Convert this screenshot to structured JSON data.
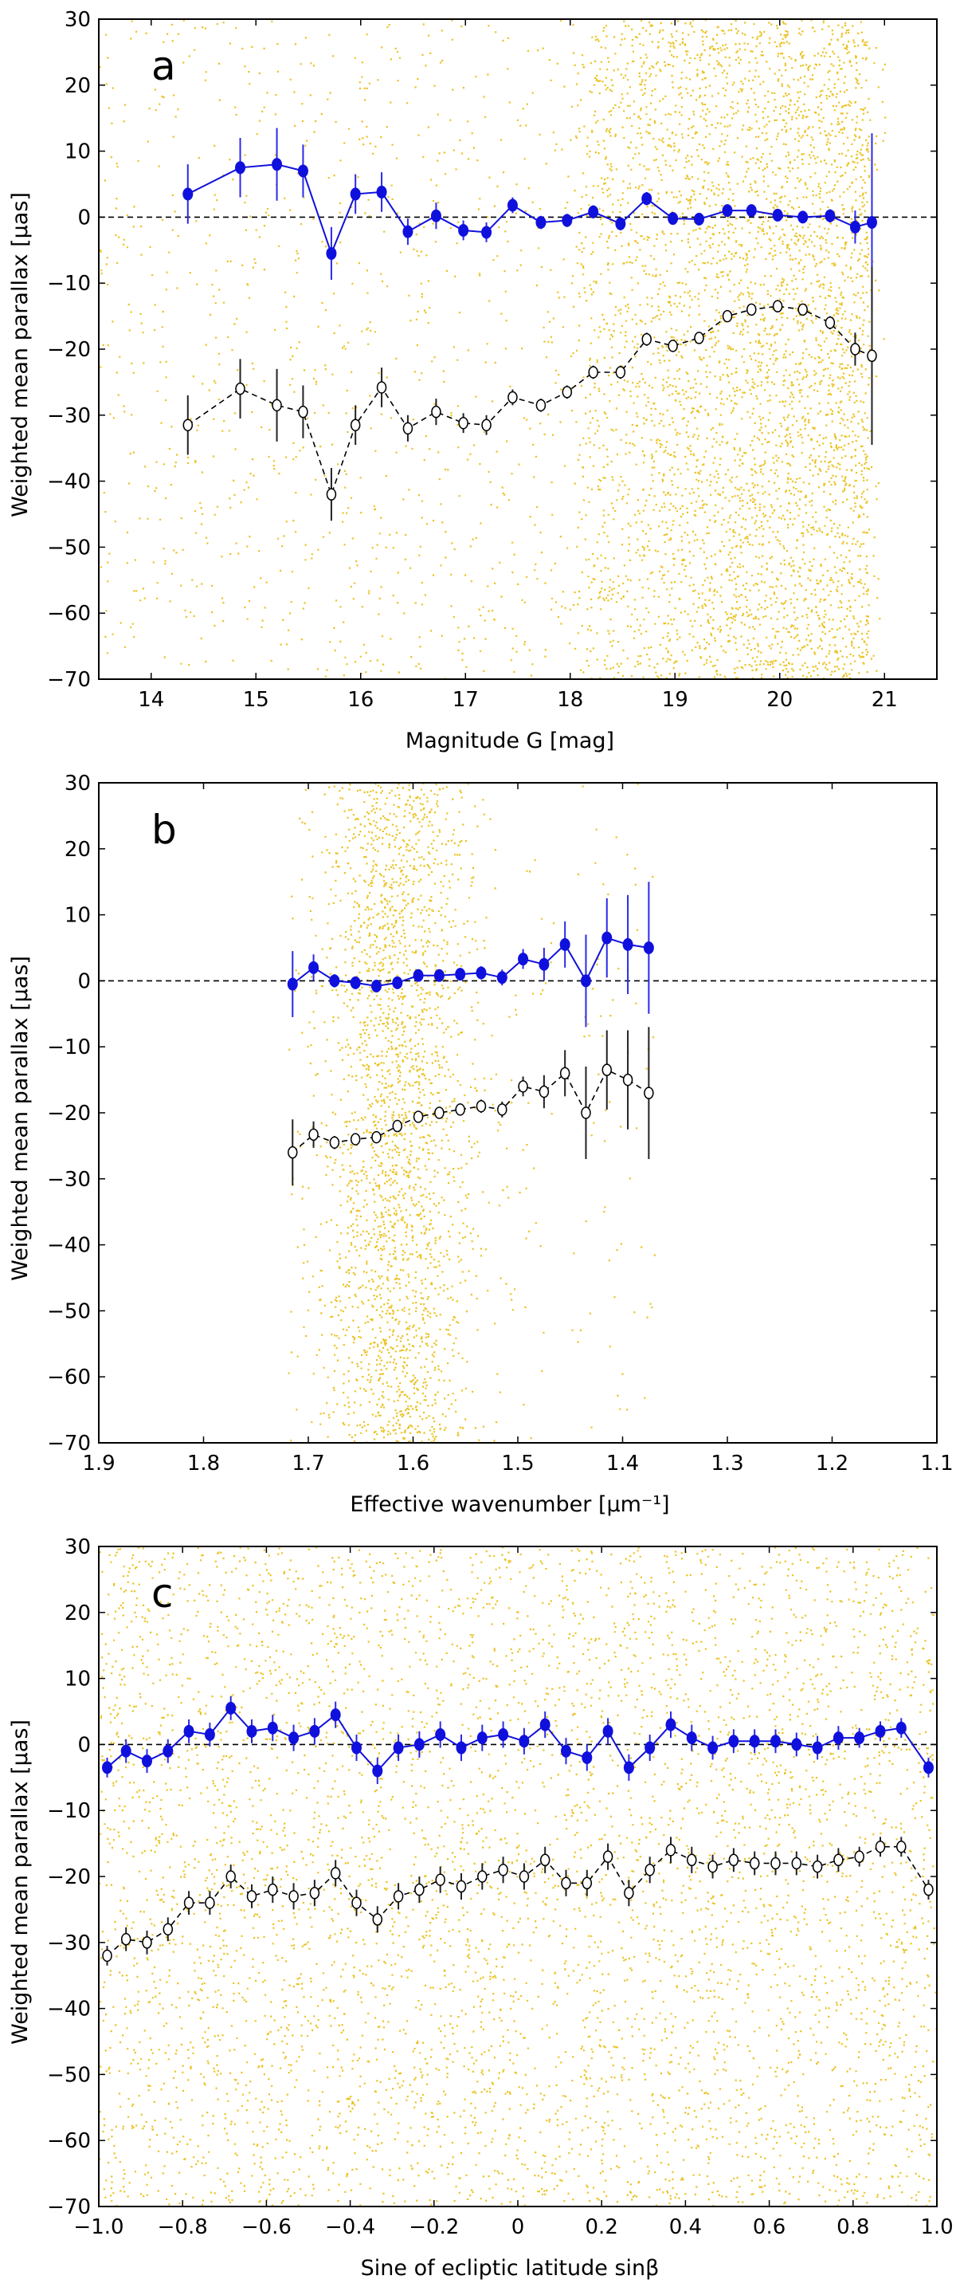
{
  "colors": {
    "scatter": "#e8b800",
    "corrected": "#1010dd",
    "uncorrected": "#000000",
    "zero_line": "#000000"
  },
  "chart_data": [
    {
      "type": "scatter",
      "panel_label": "a",
      "xlabel": "Magnitude G [mag]",
      "ylabel": "Weighted mean parallax [μas]",
      "xlim": [
        13.5,
        21.5
      ],
      "ylim": [
        -70,
        30
      ],
      "xticks": [
        14,
        15,
        16,
        17,
        18,
        19,
        20,
        21
      ],
      "yticks": [
        30,
        20,
        10,
        0,
        -10,
        -20,
        -30,
        -40,
        -50,
        -60,
        -70
      ],
      "zero_line": true,
      "background_density": {
        "range": [
          13.5,
          21.0
        ],
        "dense_from": 18.0,
        "peak": 20.0
      },
      "series": [
        {
          "style": "filled",
          "x": [
            14.35,
            14.85,
            15.2,
            15.45,
            15.72,
            15.95,
            16.2,
            16.45,
            16.72,
            16.98,
            17.2,
            17.45,
            17.72,
            17.97,
            18.22,
            18.48,
            18.73,
            18.98,
            19.23,
            19.5,
            19.73,
            19.98,
            20.22,
            20.48,
            20.72,
            20.88
          ],
          "y": [
            3.5,
            7.5,
            8.0,
            7.0,
            -5.5,
            3.5,
            3.8,
            -2.2,
            0.2,
            -2.0,
            -2.3,
            1.8,
            -0.8,
            -0.5,
            0.8,
            -1.0,
            2.8,
            -0.2,
            -0.3,
            1.0,
            1.0,
            0.3,
            0.0,
            0.2,
            -1.5,
            -0.8
          ],
          "err": [
            4.5,
            4.5,
            5.5,
            4.0,
            4.0,
            3.0,
            3.0,
            2.0,
            2.0,
            1.5,
            1.5,
            1.2,
            1.0,
            1.0,
            1.0,
            1.0,
            1.0,
            0.8,
            0.8,
            0.8,
            0.8,
            0.8,
            0.8,
            1.0,
            2.5,
            13.5
          ]
        },
        {
          "style": "open",
          "x": [
            14.35,
            14.85,
            15.2,
            15.45,
            15.72,
            15.95,
            16.2,
            16.45,
            16.72,
            16.98,
            17.2,
            17.45,
            17.72,
            17.97,
            18.22,
            18.48,
            18.73,
            18.98,
            19.23,
            19.5,
            19.73,
            19.98,
            20.22,
            20.48,
            20.72,
            20.88
          ],
          "y": [
            -31.5,
            -26.0,
            -28.5,
            -29.5,
            -42.0,
            -31.5,
            -25.8,
            -32.0,
            -29.5,
            -31.2,
            -31.5,
            -27.3,
            -28.5,
            -26.5,
            -23.5,
            -23.5,
            -18.5,
            -19.5,
            -18.3,
            -15.0,
            -14.0,
            -13.5,
            -14.0,
            -16.0,
            -20.0,
            -21.0
          ],
          "err": [
            4.5,
            4.5,
            5.5,
            4.0,
            4.0,
            3.0,
            3.0,
            2.0,
            2.0,
            1.5,
            1.5,
            1.2,
            1.0,
            1.0,
            1.0,
            1.0,
            1.0,
            0.8,
            0.8,
            0.8,
            0.8,
            0.8,
            0.8,
            1.0,
            2.5,
            13.5
          ]
        }
      ]
    },
    {
      "type": "scatter",
      "panel_label": "b",
      "xlabel": "Effective wavenumber [μm⁻¹]",
      "ylabel": "Weighted mean parallax [μas]",
      "xlim": [
        1.9,
        1.1
      ],
      "ylim": [
        -70,
        30
      ],
      "xticks": [
        1.9,
        1.8,
        1.7,
        1.6,
        1.5,
        1.4,
        1.3,
        1.2,
        1.1
      ],
      "yticks": [
        30,
        20,
        10,
        0,
        -10,
        -20,
        -30,
        -40,
        -50,
        -60,
        -70
      ],
      "zero_line": true,
      "background_density": {
        "range": [
          1.37,
          1.72
        ],
        "dense_from": 1.68,
        "dense_to": 1.53,
        "peak": 1.62
      },
      "series": [
        {
          "style": "filled",
          "x": [
            1.715,
            1.695,
            1.675,
            1.655,
            1.635,
            1.615,
            1.595,
            1.575,
            1.555,
            1.535,
            1.515,
            1.495,
            1.475,
            1.455,
            1.435,
            1.415,
            1.395,
            1.375
          ],
          "y": [
            -0.5,
            2.0,
            0.0,
            -0.3,
            -0.8,
            -0.3,
            0.8,
            0.8,
            1.0,
            1.2,
            0.5,
            3.3,
            2.5,
            5.5,
            0.0,
            6.5,
            5.5,
            5.0
          ],
          "err": [
            5.0,
            2.0,
            1.0,
            0.8,
            0.6,
            0.6,
            0.6,
            0.6,
            0.8,
            1.0,
            1.2,
            1.5,
            2.5,
            3.5,
            7.0,
            6.0,
            7.5,
            10.0
          ]
        },
        {
          "style": "open",
          "x": [
            1.715,
            1.695,
            1.675,
            1.655,
            1.635,
            1.615,
            1.595,
            1.575,
            1.555,
            1.535,
            1.515,
            1.495,
            1.475,
            1.455,
            1.435,
            1.415,
            1.395,
            1.375
          ],
          "y": [
            -26.0,
            -23.3,
            -24.5,
            -24.0,
            -23.7,
            -22.0,
            -20.6,
            -20.0,
            -19.5,
            -19.0,
            -19.5,
            -16.0,
            -16.8,
            -14.0,
            -20.0,
            -13.5,
            -15.0,
            -17.0
          ],
          "err": [
            5.0,
            2.0,
            1.0,
            0.8,
            0.6,
            0.6,
            0.6,
            0.6,
            0.8,
            1.0,
            1.2,
            1.5,
            2.5,
            3.5,
            7.0,
            6.0,
            7.5,
            10.0
          ]
        }
      ]
    },
    {
      "type": "scatter",
      "panel_label": "c",
      "xlabel": "Sine of ecliptic latitude sinβ",
      "ylabel": "Weighted mean parallax [μas]",
      "xlim": [
        -1.0,
        1.0
      ],
      "ylim": [
        -70,
        30
      ],
      "xticks": [
        -1.0,
        -0.8,
        -0.6,
        -0.4,
        -0.2,
        0,
        0.2,
        0.4,
        0.6,
        0.8,
        1.0
      ],
      "yticks": [
        30,
        20,
        10,
        0,
        -10,
        -20,
        -30,
        -40,
        -50,
        -60,
        -70
      ],
      "zero_line": true,
      "background_density": {
        "range": [
          -1.0,
          1.0
        ],
        "uniform": true
      },
      "series": [
        {
          "style": "filled",
          "x": [
            -0.98,
            -0.935,
            -0.885,
            -0.835,
            -0.785,
            -0.735,
            -0.685,
            -0.635,
            -0.585,
            -0.535,
            -0.485,
            -0.435,
            -0.385,
            -0.335,
            -0.285,
            -0.235,
            -0.185,
            -0.135,
            -0.085,
            -0.035,
            0.015,
            0.065,
            0.115,
            0.165,
            0.215,
            0.265,
            0.315,
            0.365,
            0.415,
            0.465,
            0.515,
            0.565,
            0.615,
            0.665,
            0.715,
            0.765,
            0.815,
            0.865,
            0.915,
            0.98
          ],
          "y": [
            -3.5,
            -1.0,
            -2.5,
            -1.0,
            2.0,
            1.5,
            5.5,
            2.0,
            2.5,
            1.0,
            2.0,
            4.5,
            -0.5,
            -4.0,
            -0.5,
            0.0,
            1.5,
            -0.5,
            1.0,
            1.5,
            0.5,
            3.0,
            -1.0,
            -2.0,
            2.0,
            -3.5,
            -0.5,
            3.0,
            1.0,
            -0.5,
            0.5,
            0.5,
            0.5,
            0.0,
            -0.5,
            1.0,
            1.0,
            2.0,
            2.5,
            -3.5
          ],
          "err": [
            1.5,
            1.8,
            1.8,
            1.8,
            1.8,
            1.8,
            1.8,
            1.8,
            2.0,
            2.0,
            2.0,
            2.0,
            2.0,
            2.0,
            2.0,
            2.0,
            2.0,
            2.0,
            2.0,
            2.0,
            2.0,
            2.0,
            2.0,
            2.0,
            2.0,
            2.0,
            2.0,
            2.0,
            2.0,
            1.8,
            1.8,
            1.8,
            1.8,
            1.8,
            1.8,
            1.8,
            1.5,
            1.5,
            1.5,
            1.5
          ]
        },
        {
          "style": "open",
          "x": [
            -0.98,
            -0.935,
            -0.885,
            -0.835,
            -0.785,
            -0.735,
            -0.685,
            -0.635,
            -0.585,
            -0.535,
            -0.485,
            -0.435,
            -0.385,
            -0.335,
            -0.285,
            -0.235,
            -0.185,
            -0.135,
            -0.085,
            -0.035,
            0.015,
            0.065,
            0.115,
            0.165,
            0.215,
            0.265,
            0.315,
            0.365,
            0.415,
            0.465,
            0.515,
            0.565,
            0.615,
            0.665,
            0.715,
            0.765,
            0.815,
            0.865,
            0.915,
            0.98
          ],
          "y": [
            -32.0,
            -29.5,
            -30.0,
            -28.0,
            -24.0,
            -24.0,
            -20.0,
            -23.0,
            -22.0,
            -23.0,
            -22.5,
            -19.5,
            -24.0,
            -26.5,
            -23.0,
            -22.0,
            -20.5,
            -21.5,
            -20.0,
            -19.0,
            -20.0,
            -17.5,
            -21.0,
            -21.0,
            -17.0,
            -22.5,
            -19.0,
            -16.0,
            -17.5,
            -18.5,
            -17.5,
            -18.0,
            -18.0,
            -18.0,
            -18.5,
            -17.5,
            -17.0,
            -15.5,
            -15.5,
            -22.0
          ],
          "err": [
            1.5,
            1.8,
            1.8,
            1.8,
            1.8,
            1.8,
            1.8,
            1.8,
            2.0,
            2.0,
            2.0,
            2.0,
            2.0,
            2.0,
            2.0,
            2.0,
            2.0,
            2.0,
            2.0,
            2.0,
            2.0,
            2.0,
            2.0,
            2.0,
            2.0,
            2.0,
            2.0,
            2.0,
            2.0,
            1.8,
            1.8,
            1.8,
            1.8,
            1.8,
            1.8,
            1.8,
            1.5,
            1.5,
            1.5,
            1.5
          ]
        }
      ]
    }
  ]
}
